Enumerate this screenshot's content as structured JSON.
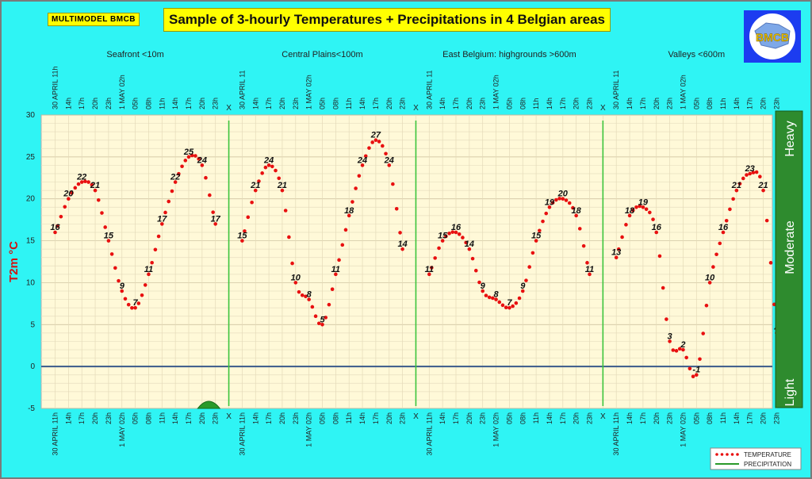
{
  "header": {
    "brand_label": "MULTIMODEL BMCB",
    "title": "Sample of 3-hourly Temperatures + Precipitations in 4 Belgian areas",
    "logo_text": "BMCB"
  },
  "colors": {
    "background": "#2ff4f4",
    "plot_bg": "#fff9d8",
    "temperature": "#e81010",
    "precipitation": "#2a9a2a",
    "zero_line": "#3a5a8a",
    "ylabel": "#d01414",
    "intensity_bar": "#2e8b2e"
  },
  "chart_data": {
    "type": "line",
    "ylabel": "T2m °C",
    "ylim": [
      -5,
      30
    ],
    "yticks": [
      -5,
      0,
      5,
      10,
      15,
      20,
      25,
      30
    ],
    "grid": true,
    "legend_position": "bottom-right",
    "legend": [
      "TEMPERATURE",
      "PRECIPITATION"
    ],
    "separator_label": "X",
    "x_labels": [
      "30 APRIL 11h",
      "14h",
      "17h",
      "20h",
      "23h",
      "1 MAY 02h",
      "05h",
      "08h",
      "11h",
      "14h",
      "17h",
      "20h",
      "23h"
    ],
    "x_labels_top_variant": [
      "30 APRIL 11",
      "14h",
      "17h",
      "20h",
      "23h",
      "1 MAY 02h",
      "05h",
      "08h",
      "11h",
      "14h",
      "17h",
      "20h",
      "23h"
    ],
    "areas": [
      {
        "name": "Seafront <10m",
        "temperature": [
          16,
          20,
          22,
          21,
          15,
          9,
          7,
          11,
          17,
          22,
          25,
          24,
          17
        ],
        "precipitation_peak": "22h"
      },
      {
        "name": "Central Plains<100m",
        "temperature": [
          15,
          21,
          24,
          21,
          10,
          8,
          5,
          11,
          18,
          24,
          27,
          24,
          14
        ]
      },
      {
        "name": "East Belgium:     highgrounds >600m",
        "temperature": [
          11,
          15,
          16,
          14,
          9,
          8,
          7,
          9,
          15,
          19,
          20,
          18,
          11
        ]
      },
      {
        "name": "Valleys <600m",
        "temperature": [
          13,
          18,
          19,
          16,
          3,
          2,
          -1,
          10,
          16,
          21,
          23,
          21,
          4
        ]
      }
    ],
    "precipitation_intensity": [
      "Heavy",
      "Moderate",
      "Light"
    ]
  }
}
